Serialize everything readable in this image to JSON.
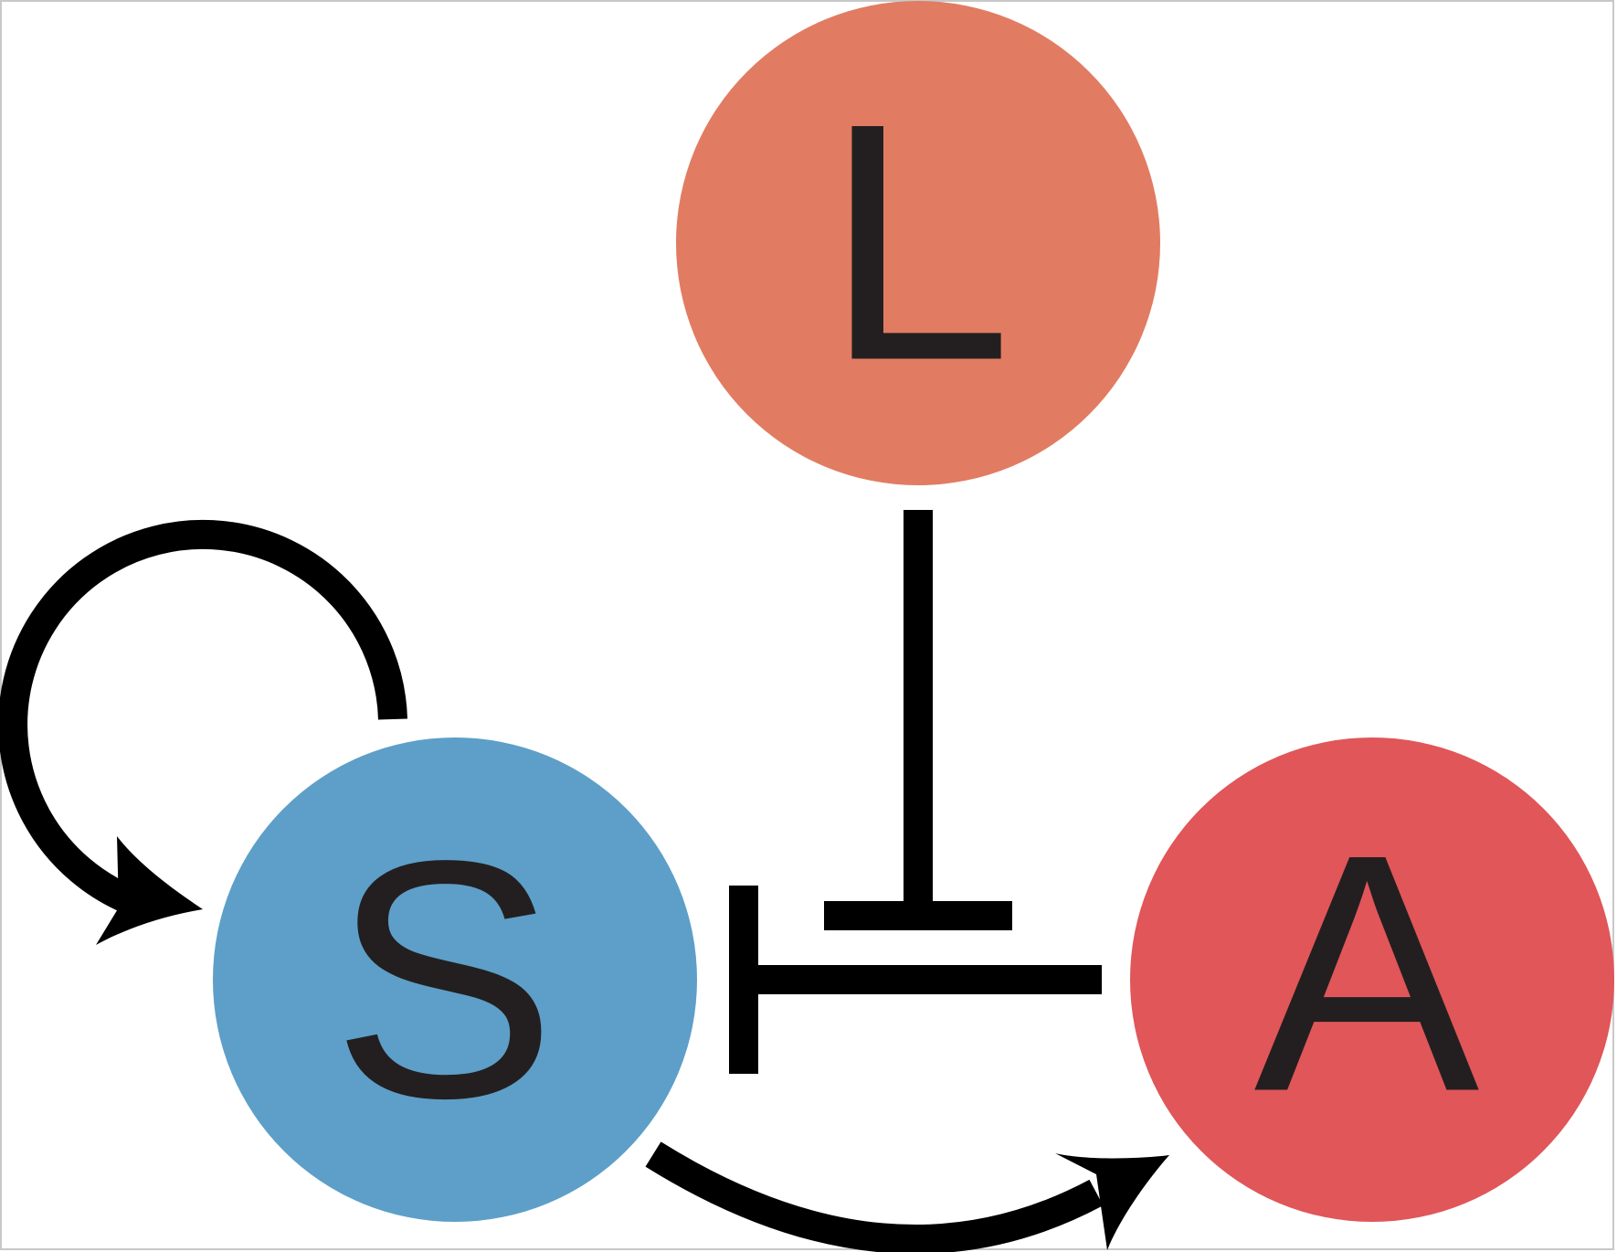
{
  "nodes": {
    "L": {
      "label": "L",
      "color": "#e17c62"
    },
    "S": {
      "label": "S",
      "color": "#5d9fc8"
    },
    "A": {
      "label": "A",
      "color": "#e05659"
    }
  },
  "edges": [
    {
      "from": "S",
      "to": "S",
      "type": "activation"
    },
    {
      "from": "L",
      "to": "S-A",
      "type": "inhibition"
    },
    {
      "from": "A",
      "to": "S",
      "type": "inhibition"
    },
    {
      "from": "S",
      "to": "A",
      "type": "activation"
    }
  ],
  "colors": {
    "edge": "#000000",
    "text": "#231f20",
    "frame": "#c8c8c8"
  }
}
